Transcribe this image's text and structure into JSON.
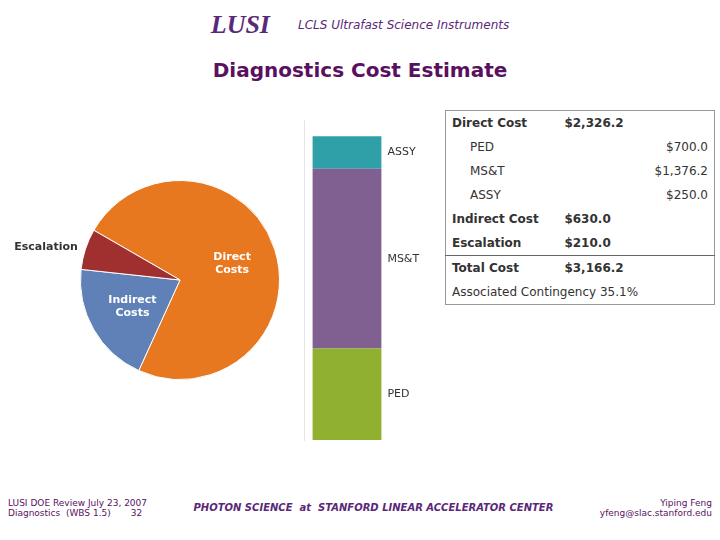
{
  "header": "LUSI",
  "subtitle": "LCLS Ultrafast Science Instruments",
  "title": "Diagnostics Cost Estimate",
  "chart_data": [
    {
      "type": "pie",
      "categories": [
        "Direct\nCosts",
        "Indirect\nCosts",
        "Escalation"
      ],
      "values": [
        2326.2,
        630.0,
        210.0
      ],
      "colors": [
        "#e87820",
        "#6080b8",
        "#a03030"
      ]
    },
    {
      "type": "bar",
      "stacked": true,
      "tick_labels": false,
      "categories": [
        null
      ],
      "ylim": [
        0,
        2450
      ],
      "series": [
        {
          "name": "PED",
          "color": "#90b030",
          "values": [
            700.0
          ]
        },
        {
          "name": "MS&T",
          "color": "#806090",
          "values": [
            1376.2
          ]
        },
        {
          "name": "ASSY",
          "color": "#30a0a8",
          "values": [
            250.0
          ]
        }
      ]
    }
  ],
  "table": [
    {
      "label": "Direct Cost",
      "value": "$2,326.2",
      "items": [
        {
          "label": "PED",
          "value": "$700.0"
        },
        {
          "label": "MS&T",
          "value": "$1,376.2"
        },
        {
          "label": "ASSY",
          "value": "$250.0"
        }
      ]
    },
    {
      "label": "Indirect Cost",
      "value": "$630.0"
    },
    {
      "label": "Escalation",
      "value": "$210.0"
    }
  ],
  "table_total": {
    "label": "Total Cost",
    "value": "$3,166.2"
  },
  "table_note": "Associated Contingency 35.1%",
  "footer": {
    "left": [
      "LUSI DOE Review July 23, 2007",
      "Diagnostics  (WBS 1.5)       32"
    ],
    "center": "PHOTON SCIENCE  at  STANFORD LINEAR ACCELERATOR CENTER",
    "right": [
      "Yiping Feng",
      "yfeng@slac.stanford.edu"
    ]
  }
}
